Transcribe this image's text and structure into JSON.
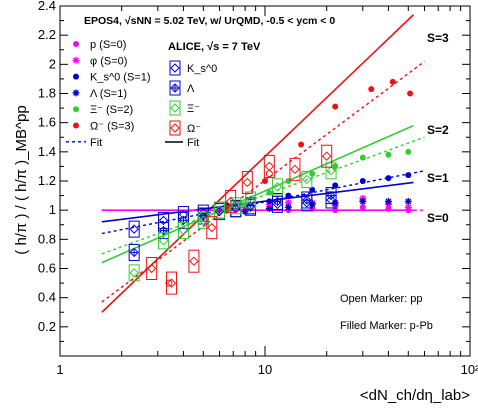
{
  "chart_data": {
    "type": "scatter",
    "x_scale": "log",
    "xlim": [
      1,
      100
    ],
    "ylim": [
      0.0,
      2.4
    ],
    "grid": false,
    "xlabel": "<dN_ch/dη_lab>",
    "ylabel": "( h/π ) / ( h/π )_MB^pp",
    "x_tick_labels": [
      "1",
      "10",
      "10²"
    ],
    "y_tick_labels": [
      "0.2",
      "0.4",
      "0.6",
      "0.8",
      "1",
      "1.2",
      "1.4",
      "1.6",
      "1.8",
      "2",
      "2.2",
      "2.4"
    ],
    "header_text": "EPOS4, √sNN = 5.02 TeV, w/ UrQMD, -0.5 < ycm < 0",
    "legend_epos": {
      "entries": [
        {
          "label": "p (S=0)",
          "marker": "circle",
          "color": "#ff00ff"
        },
        {
          "label": "φ (S=0)",
          "marker": "star",
          "color": "#ff00ff"
        },
        {
          "label": "K_s^0 (S=1)",
          "marker": "circle",
          "color": "#0000cc"
        },
        {
          "label": "Λ (S=1)",
          "marker": "star",
          "color": "#0000cc"
        },
        {
          "label": "Ξ⁻ (S=2)",
          "marker": "circle",
          "color": "#33cc33"
        },
        {
          "label": "Ω⁻ (S=3)",
          "marker": "circle",
          "color": "#ee1111"
        }
      ],
      "fit_label": "Fit"
    },
    "legend_alice": {
      "title": "ALICE, √s = 7 TeV",
      "entries": [
        {
          "label": "K_s^0",
          "color": "#0000cc"
        },
        {
          "label": "Λ",
          "color": "#0000cc"
        },
        {
          "label": "Ξ⁻",
          "color": "#33cc33"
        },
        {
          "label": "Ω⁻",
          "color": "#ee1111"
        }
      ],
      "fit_label": "Fit"
    },
    "strangeness_labels": [
      "S=3",
      "S=2",
      "S=1",
      "S=0"
    ],
    "annotations": [
      "Open Marker: pp",
      "Filled Marker: p-Pb"
    ],
    "colors": {
      "S0": "#ff00ff",
      "S1": "#0000cc",
      "S2": "#33cc33",
      "S3": "#ee1111"
    },
    "fit_lines": [
      {
        "group": "S=3",
        "style": "solid",
        "x": [
          1.6,
          53
        ],
        "y": [
          0.3,
          2.34
        ]
      },
      {
        "group": "S=3",
        "style": "dashed",
        "x": [
          1.6,
          60
        ],
        "y": [
          0.37,
          2.02
        ]
      },
      {
        "group": "S=2",
        "style": "solid",
        "x": [
          1.6,
          53
        ],
        "y": [
          0.64,
          1.58
        ]
      },
      {
        "group": "S=2",
        "style": "dashed",
        "x": [
          1.6,
          60
        ],
        "y": [
          0.7,
          1.5
        ]
      },
      {
        "group": "S=1",
        "style": "solid",
        "x": [
          1.6,
          53
        ],
        "y": [
          0.92,
          1.19
        ]
      },
      {
        "group": "S=1",
        "style": "dashed",
        "x": [
          1.6,
          60
        ],
        "y": [
          0.84,
          1.27
        ]
      },
      {
        "group": "S=0",
        "style": "solid",
        "x": [
          1.6,
          53
        ],
        "y": [
          1.0,
          1.0
        ]
      },
      {
        "group": "S=0",
        "style": "dashed",
        "x": [
          1.6,
          60
        ],
        "y": [
          1.0,
          1.0
        ]
      }
    ],
    "series": [
      {
        "name": "p (S=0)",
        "kind": "epos",
        "color": "#ff00ff",
        "marker": "circle",
        "x": [
          6.5,
          8.0,
          10.5,
          13.0,
          17.0,
          22.0,
          30.0,
          40.0,
          50.0
        ],
        "y": [
          1.01,
          1.0,
          1.02,
          1.0,
          1.01,
          1.0,
          1.02,
          1.01,
          1.0
        ]
      },
      {
        "name": "φ (S=0)",
        "kind": "epos",
        "color": "#ff00ff",
        "marker": "star",
        "x": [
          6.5,
          8.0,
          10.5,
          13.0,
          17.0,
          22.0,
          30.0,
          40.0,
          50.0
        ],
        "y": [
          1.03,
          1.02,
          1.04,
          1.05,
          1.05,
          1.03,
          1.08,
          1.04,
          1.02
        ]
      },
      {
        "name": "K_s^0 (S=1)",
        "kind": "epos",
        "color": "#0000cc",
        "marker": "circle",
        "x": [
          6.5,
          8.0,
          10.5,
          13.0,
          17.0,
          22.0,
          30.0,
          40.0,
          50.0
        ],
        "y": [
          1.03,
          1.04,
          1.06,
          1.1,
          1.14,
          1.17,
          1.2,
          1.22,
          1.24
        ]
      },
      {
        "name": "Λ (S=1)",
        "kind": "epos",
        "color": "#0000cc",
        "marker": "star",
        "x": [
          6.5,
          8.0,
          10.5,
          13.0,
          17.0,
          22.0,
          30.0,
          40.0,
          50.0
        ],
        "y": [
          1.0,
          0.99,
          1.01,
          1.02,
          1.04,
          1.05,
          1.06,
          1.06,
          1.06
        ]
      },
      {
        "name": "Ξ⁻ (S=2)",
        "kind": "epos",
        "color": "#33cc33",
        "marker": "circle",
        "x": [
          6.5,
          8.0,
          10.5,
          13.0,
          17.0,
          22.0,
          30.0,
          40.0,
          50.0
        ],
        "y": [
          1.01,
          1.04,
          1.12,
          1.2,
          1.25,
          1.3,
          1.36,
          1.38,
          1.4
        ]
      },
      {
        "name": "Ω⁻ (S=3)",
        "kind": "epos",
        "color": "#ee1111",
        "marker": "circle",
        "x": [
          6.5,
          10.0,
          15.0,
          22.0,
          33.0,
          42.0,
          51.0
        ],
        "y": [
          1.02,
          1.2,
          1.45,
          1.71,
          1.83,
          1.88,
          1.8
        ]
      },
      {
        "name": "ALICE K_s^0",
        "kind": "alice",
        "color": "#0000cc",
        "marker": "box-diamond",
        "x": [
          2.3,
          3.2,
          4.0,
          5.0,
          6.0,
          7.2,
          8.5,
          11.5,
          16.0,
          21.0
        ],
        "y": [
          0.87,
          0.93,
          0.97,
          0.98,
          1.0,
          1.01,
          1.02,
          1.04,
          1.05,
          1.07
        ]
      },
      {
        "name": "ALICE Λ",
        "kind": "alice",
        "color": "#0000cc",
        "marker": "box-cross",
        "x": [
          2.3,
          3.2,
          4.0,
          5.0,
          6.0,
          7.2,
          8.5,
          11.5,
          16.0,
          21.0
        ],
        "y": [
          0.71,
          0.86,
          0.93,
          0.96,
          0.99,
          1.01,
          1.03,
          1.06,
          1.07,
          1.1
        ]
      },
      {
        "name": "ALICE Ξ⁻",
        "kind": "alice",
        "color": "#33cc33",
        "marker": "box-diamond",
        "x": [
          2.3,
          3.2,
          4.0,
          5.0,
          6.0,
          7.2,
          8.5,
          11.5,
          16.0,
          21.0
        ],
        "y": [
          0.57,
          0.79,
          0.86,
          0.93,
          1.0,
          1.03,
          1.07,
          1.16,
          1.21,
          1.27
        ]
      },
      {
        "name": "ALICE Ω⁻",
        "kind": "alice",
        "color": "#ee1111",
        "marker": "box-diamond",
        "x": [
          2.8,
          3.5,
          4.5,
          5.5,
          6.8,
          8.2,
          10.5,
          14.0,
          20.0
        ],
        "y": [
          0.6,
          0.5,
          0.65,
          0.88,
          1.06,
          1.19,
          1.3,
          1.28,
          1.37
        ]
      },
      {
        "name": "ALICE Ω⁻ open",
        "kind": "alice-open",
        "color": "#ee1111",
        "marker": "open-circle",
        "x": [
          3.4,
          10.5
        ],
        "y": [
          0.5,
          1.25
        ]
      }
    ]
  }
}
